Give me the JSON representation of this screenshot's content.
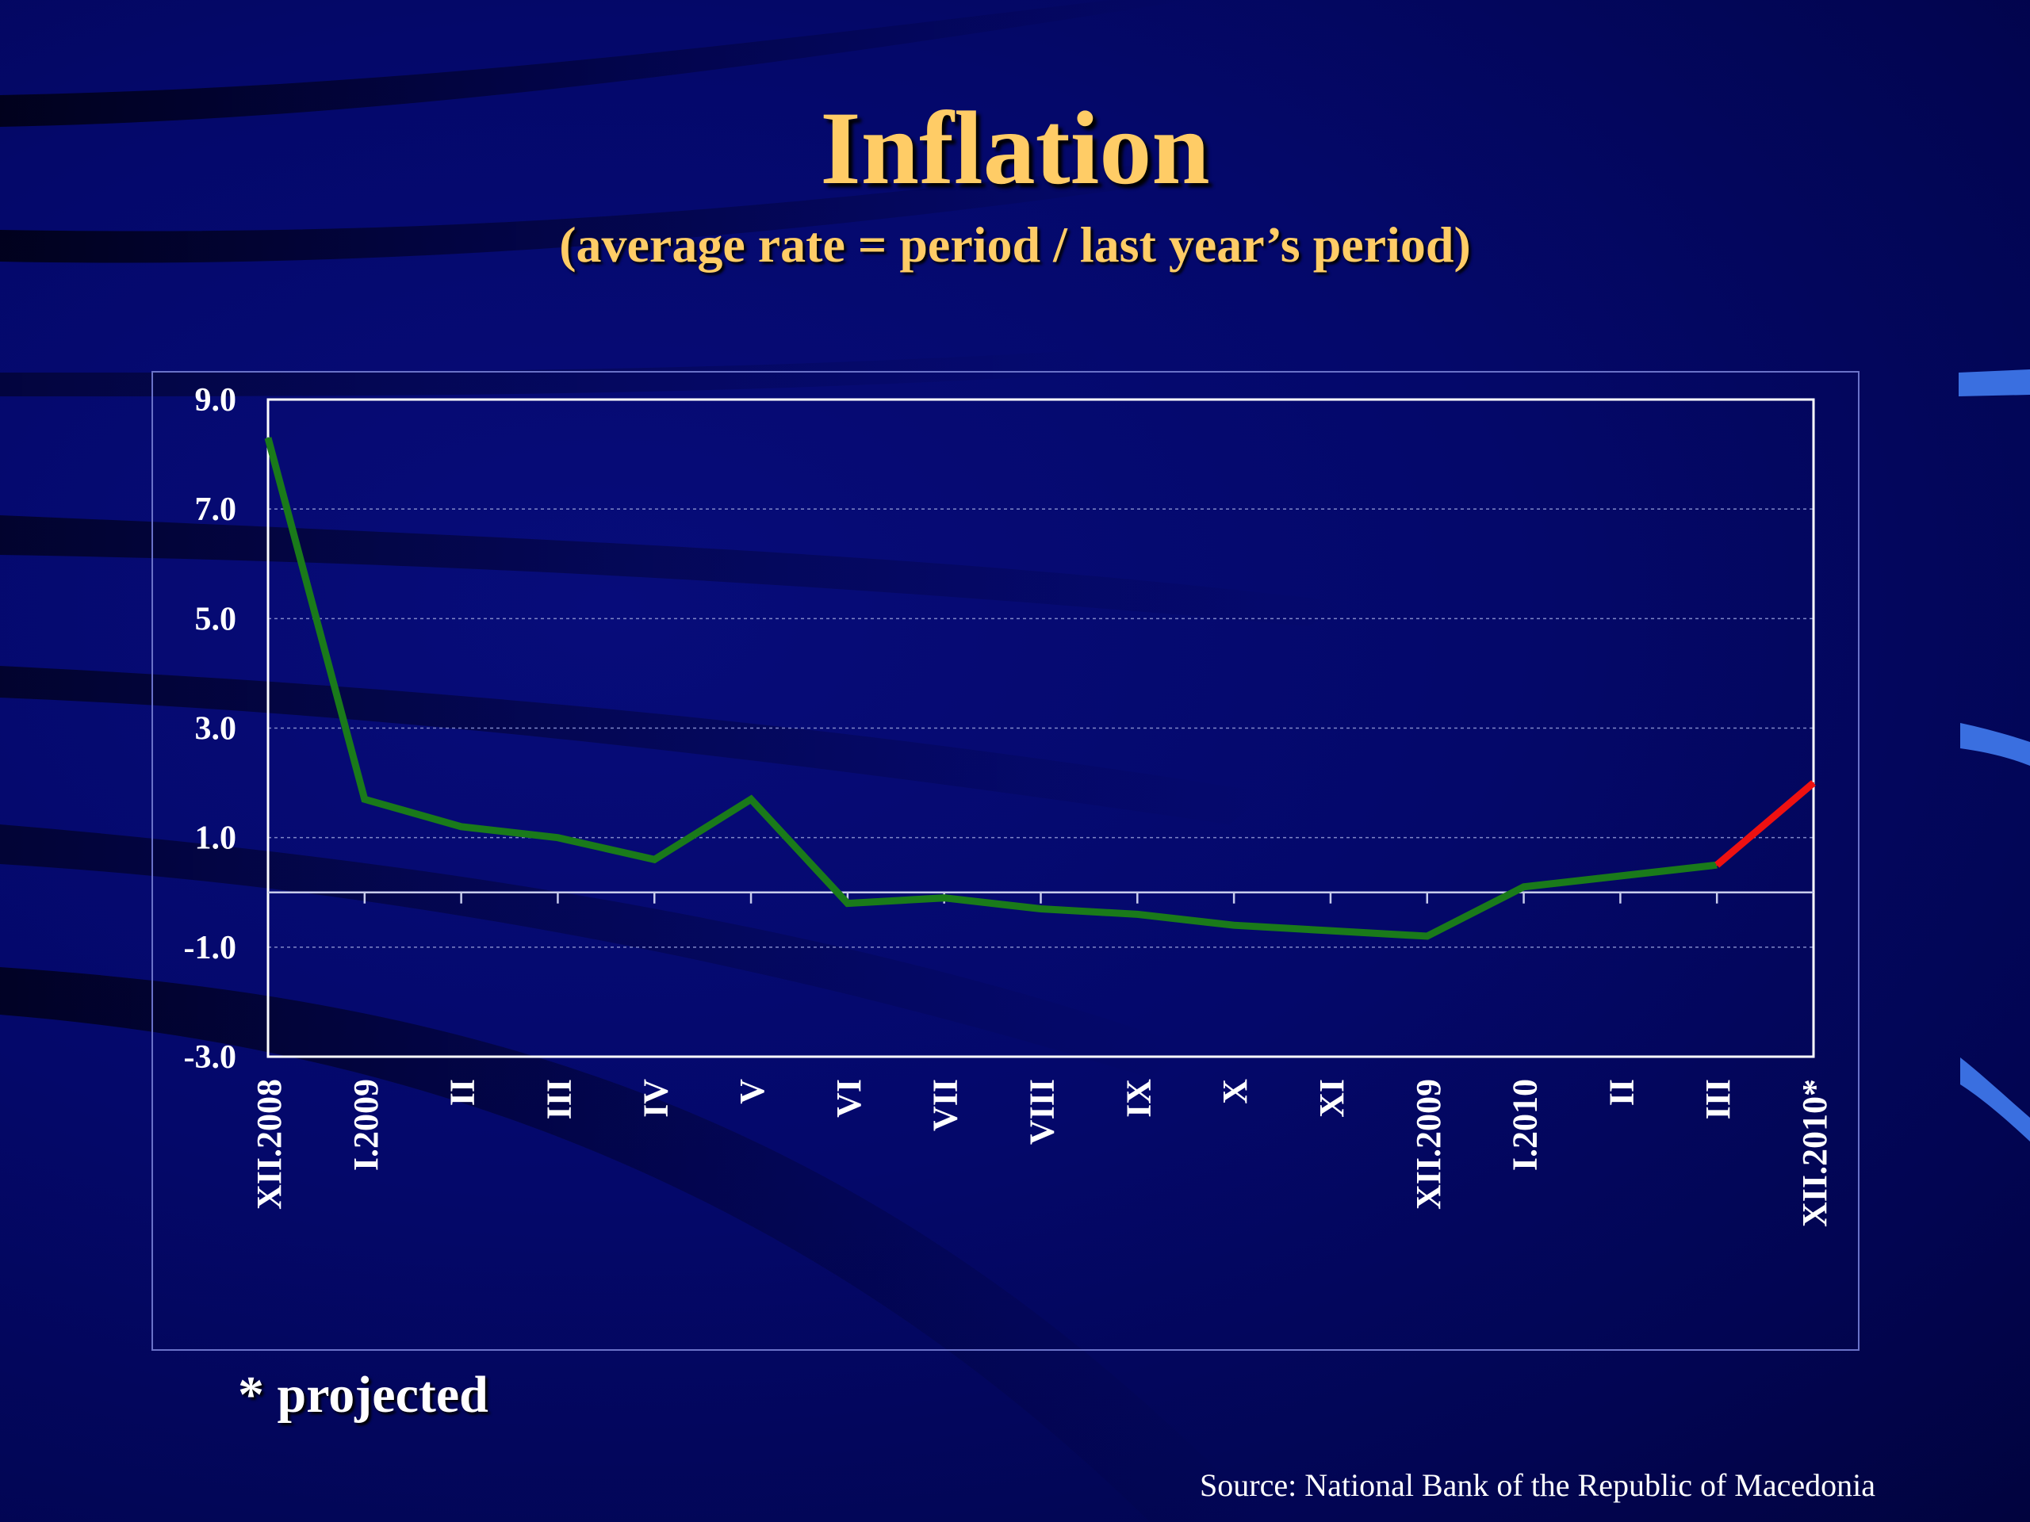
{
  "title": "Inflation",
  "subtitle": "(average rate = period / last year’s period)",
  "footnote": "* projected",
  "source": "Source: National Bank of the Republic of Macedonia",
  "colors": {
    "title": "#ffcc66",
    "actual_line": "#1a7a1a",
    "projected_line": "#ee1111",
    "axis": "#ffffff",
    "grid": "#8088c8"
  },
  "chart_data": {
    "type": "line",
    "title": "Inflation",
    "categories": [
      "XII.2008",
      "I.2009",
      "II",
      "III",
      "IV",
      "V",
      "VI",
      "VII",
      "VIII",
      "IX",
      "X",
      "XI",
      "XII.2009",
      "I.2010",
      "II",
      "III",
      "XII.2010*"
    ],
    "series": [
      {
        "values": [
          8.3,
          1.7,
          1.2,
          1.0,
          0.6,
          1.7,
          -0.2,
          -0.1,
          -0.3,
          -0.4,
          -0.6,
          -0.7,
          -0.8,
          0.1,
          0.3,
          0.5,
          null
        ]
      },
      {
        "values": [
          null,
          null,
          null,
          null,
          null,
          null,
          null,
          null,
          null,
          null,
          null,
          null,
          null,
          null,
          null,
          0.5,
          2.0
        ]
      }
    ],
    "ylim": [
      -3.0,
      9.0
    ],
    "yticks": [
      "9.0",
      "7.0",
      "5.0",
      "3.0",
      "1.0",
      "-1.0",
      "-3.0"
    ],
    "ytick_values": [
      9,
      7,
      5,
      3,
      1,
      -1,
      -3
    ],
    "grid": true,
    "xlabel": "",
    "ylabel": ""
  }
}
